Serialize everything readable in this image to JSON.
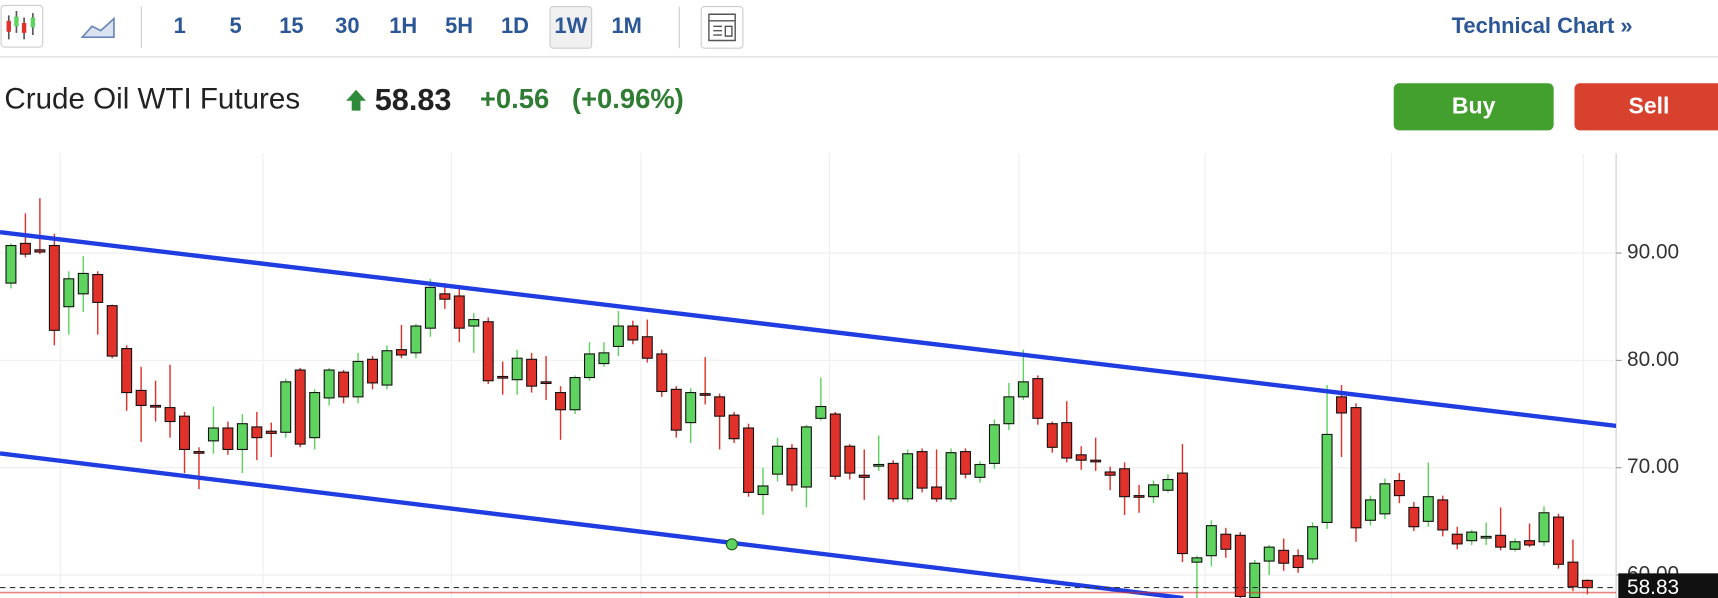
{
  "toolbar": {
    "intervals": [
      "1",
      "5",
      "15",
      "30",
      "1H",
      "5H",
      "1D",
      "1W",
      "1M"
    ],
    "selected": "1W",
    "link": "Technical Chart »"
  },
  "quote": {
    "name": "Crude Oil WTI Futures",
    "price": "58.83",
    "change": "+0.56",
    "change_pct": "(+0.96%)",
    "buttons": [
      "Buy",
      "Sell"
    ]
  },
  "chart_data": {
    "type": "candlestick",
    "up_color": "#5fd35f",
    "down_color": "#e0312b",
    "grid": true,
    "ylim": [
      57.86,
      99.29
    ],
    "yticks": [
      {
        "value": 60,
        "label": "60.00"
      },
      {
        "value": 70,
        "label": "70.00"
      },
      {
        "value": 80,
        "label": "80.00"
      },
      {
        "value": 90,
        "label": "90.00"
      }
    ],
    "last_value": 58.83,
    "ohlc": [
      [
        87.2,
        90.9,
        86.7,
        90.7
      ],
      [
        90.9,
        93.7,
        89.6,
        89.9
      ],
      [
        90.3,
        95.1,
        89.9,
        90.1
      ],
      [
        90.7,
        91.8,
        81.4,
        82.8
      ],
      [
        85.0,
        88.3,
        82.4,
        87.6
      ],
      [
        86.2,
        89.7,
        84.5,
        88.1
      ],
      [
        88.0,
        88.3,
        82.4,
        85.4
      ],
      [
        85.1,
        85.2,
        80.2,
        80.4
      ],
      [
        81.1,
        81.4,
        75.3,
        77.0
      ],
      [
        77.2,
        79.4,
        72.4,
        75.8
      ],
      [
        75.8,
        78.1,
        74.3,
        75.7
      ],
      [
        75.6,
        79.6,
        72.8,
        74.3
      ],
      [
        74.8,
        75.2,
        69.5,
        71.7
      ],
      [
        71.5,
        71.9,
        68.0,
        71.4
      ],
      [
        72.5,
        75.7,
        71.3,
        73.7
      ],
      [
        73.7,
        74.3,
        71.2,
        71.7
      ],
      [
        71.7,
        75.0,
        69.5,
        74.1
      ],
      [
        73.8,
        75.2,
        70.7,
        72.8
      ],
      [
        73.4,
        74.2,
        71.0,
        73.2
      ],
      [
        73.3,
        78.3,
        72.8,
        78.0
      ],
      [
        79.1,
        79.3,
        71.9,
        72.2
      ],
      [
        72.8,
        77.3,
        71.7,
        77.0
      ],
      [
        76.5,
        79.3,
        75.8,
        79.1
      ],
      [
        78.9,
        79.1,
        76.0,
        76.6
      ],
      [
        76.6,
        80.7,
        76.0,
        79.9
      ],
      [
        80.1,
        80.4,
        77.3,
        77.9
      ],
      [
        77.7,
        81.4,
        77.3,
        80.9
      ],
      [
        81.0,
        83.3,
        80.2,
        80.5
      ],
      [
        80.7,
        83.4,
        80.2,
        83.2
      ],
      [
        83.0,
        87.6,
        82.2,
        86.8
      ],
      [
        86.2,
        87.2,
        84.8,
        85.7
      ],
      [
        86.0,
        86.8,
        81.7,
        83.0
      ],
      [
        83.2,
        84.4,
        80.7,
        83.8
      ],
      [
        83.6,
        84.0,
        77.8,
        78.1
      ],
      [
        78.5,
        79.9,
        76.8,
        78.4
      ],
      [
        78.2,
        81.0,
        76.8,
        80.2
      ],
      [
        80.1,
        80.7,
        77.0,
        77.6
      ],
      [
        78.0,
        80.4,
        76.3,
        77.9
      ],
      [
        77.0,
        77.6,
        72.6,
        75.4
      ],
      [
        75.4,
        78.6,
        75.0,
        78.4
      ],
      [
        78.4,
        81.7,
        78.1,
        80.6
      ],
      [
        79.7,
        81.7,
        79.4,
        80.7
      ],
      [
        81.3,
        84.6,
        80.4,
        83.2
      ],
      [
        83.2,
        83.7,
        81.5,
        81.9
      ],
      [
        82.2,
        83.8,
        79.8,
        80.2
      ],
      [
        80.6,
        81.0,
        76.6,
        77.1
      ],
      [
        77.3,
        77.6,
        72.8,
        73.5
      ],
      [
        74.2,
        77.4,
        72.3,
        77.0
      ],
      [
        76.9,
        80.3,
        75.9,
        76.8
      ],
      [
        76.6,
        76.9,
        71.7,
        74.8
      ],
      [
        74.9,
        75.2,
        72.3,
        72.7
      ],
      [
        73.7,
        74.1,
        67.3,
        67.7
      ],
      [
        67.5,
        70.0,
        65.6,
        68.3
      ],
      [
        69.4,
        72.8,
        68.7,
        72.0
      ],
      [
        71.8,
        72.2,
        67.8,
        68.4
      ],
      [
        68.2,
        74.0,
        66.3,
        73.8
      ],
      [
        74.6,
        78.4,
        74.4,
        75.7
      ],
      [
        75.0,
        75.2,
        68.9,
        69.2
      ],
      [
        72.0,
        72.2,
        68.9,
        69.5
      ],
      [
        69.3,
        71.7,
        67.0,
        69.1
      ],
      [
        70.2,
        73.0,
        69.7,
        70.3
      ],
      [
        70.4,
        70.7,
        66.8,
        67.1
      ],
      [
        67.1,
        71.7,
        66.8,
        71.3
      ],
      [
        71.5,
        71.8,
        67.7,
        68.1
      ],
      [
        68.2,
        71.7,
        66.8,
        67.1
      ],
      [
        67.1,
        71.8,
        66.8,
        71.4
      ],
      [
        71.5,
        71.8,
        69.0,
        69.4
      ],
      [
        69.1,
        70.6,
        68.6,
        70.3
      ],
      [
        70.4,
        74.5,
        69.9,
        74.0
      ],
      [
        74.1,
        77.9,
        73.5,
        76.6
      ],
      [
        76.6,
        81.0,
        76.3,
        78.0
      ],
      [
        78.3,
        78.6,
        74.0,
        74.6
      ],
      [
        74.1,
        74.3,
        71.4,
        71.9
      ],
      [
        74.2,
        76.2,
        70.5,
        70.9
      ],
      [
        71.2,
        72.0,
        69.8,
        70.7
      ],
      [
        70.7,
        72.8,
        69.7,
        70.6
      ],
      [
        69.6,
        70.1,
        67.9,
        69.3
      ],
      [
        69.9,
        70.5,
        65.6,
        67.3
      ],
      [
        67.4,
        68.4,
        65.8,
        67.3
      ],
      [
        67.3,
        68.8,
        66.7,
        68.4
      ],
      [
        67.9,
        69.4,
        67.7,
        68.9
      ],
      [
        69.5,
        72.2,
        61.2,
        62.0
      ],
      [
        61.2,
        61.8,
        57.5,
        61.6
      ],
      [
        61.8,
        65.1,
        60.8,
        64.6
      ],
      [
        63.8,
        64.4,
        61.6,
        62.4
      ],
      [
        63.7,
        64.0,
        57.0,
        58.0
      ],
      [
        57.9,
        61.4,
        56.5,
        61.1
      ],
      [
        61.3,
        62.8,
        60.0,
        62.6
      ],
      [
        62.3,
        63.4,
        60.4,
        61.1
      ],
      [
        61.8,
        62.4,
        60.2,
        60.7
      ],
      [
        61.5,
        64.9,
        61.1,
        64.5
      ],
      [
        64.9,
        77.7,
        64.3,
        73.1
      ],
      [
        76.6,
        77.7,
        71.0,
        75.1
      ],
      [
        75.6,
        76.0,
        63.1,
        64.4
      ],
      [
        65.1,
        67.4,
        64.6,
        67.0
      ],
      [
        65.7,
        69.0,
        65.2,
        68.5
      ],
      [
        68.8,
        69.5,
        66.7,
        67.4
      ],
      [
        66.3,
        66.8,
        64.1,
        64.5
      ],
      [
        65.0,
        70.5,
        64.5,
        67.3
      ],
      [
        67.0,
        67.4,
        63.6,
        64.2
      ],
      [
        63.8,
        64.5,
        62.4,
        62.9
      ],
      [
        63.2,
        64.2,
        62.8,
        64.0
      ],
      [
        63.6,
        64.9,
        62.8,
        63.6
      ],
      [
        63.7,
        66.3,
        62.3,
        62.6
      ],
      [
        62.4,
        63.4,
        62.2,
        63.1
      ],
      [
        63.2,
        64.8,
        62.6,
        62.8
      ],
      [
        63.1,
        66.4,
        62.7,
        65.8
      ],
      [
        65.4,
        65.7,
        60.6,
        61.0
      ],
      [
        61.2,
        63.3,
        58.5,
        58.9
      ],
      [
        59.5,
        59.6,
        58.2,
        58.83
      ]
    ]
  }
}
